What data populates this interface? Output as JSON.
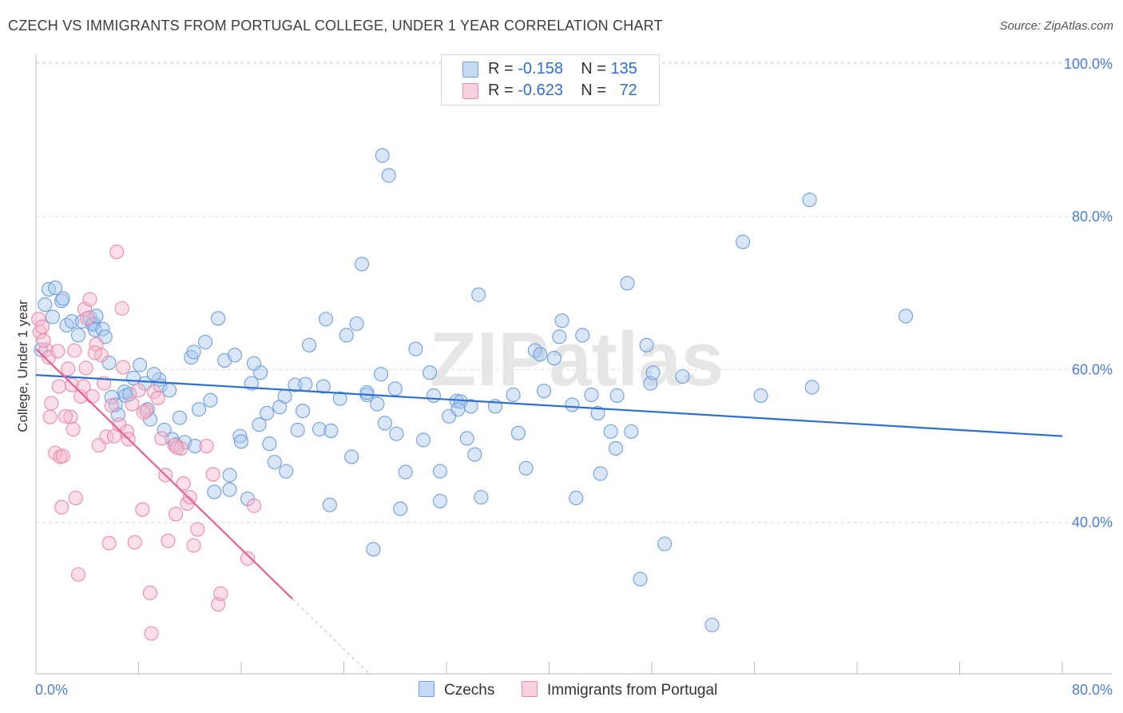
{
  "title": "CZECH VS IMMIGRANTS FROM PORTUGAL COLLEGE, UNDER 1 YEAR CORRELATION CHART",
  "source": "Source: ZipAtlas.com",
  "watermark": "ZIPatlas",
  "legend_top": {
    "rows": [
      {
        "r_label": "R =",
        "r_value": "-0.158",
        "n_label": "N =",
        "n_value": "135",
        "color": "#a9c8f0"
      },
      {
        "r_label": "R =",
        "r_value": "-0.623",
        "n_label": "N =",
        "n_value": "72",
        "color": "#f5b8cb"
      }
    ]
  },
  "legend_bottom": [
    {
      "label": "Czechs",
      "color": "#a9c8f0"
    },
    {
      "label": "Immigrants from Portugal",
      "color": "#f5b8cb"
    }
  ],
  "chart_data": {
    "type": "scatter",
    "title": "CZECH VS IMMIGRANTS FROM PORTUGAL COLLEGE, UNDER 1 YEAR CORRELATION CHART",
    "xlabel": "",
    "ylabel": "College, Under 1 year",
    "xlim": [
      0,
      80
    ],
    "ylim": [
      20,
      104
    ],
    "x_tick_labels": [
      "0.0%",
      "80.0%"
    ],
    "y_ticks": [
      40,
      60,
      80,
      100
    ],
    "y_tick_labels": [
      "40.0%",
      "60.0%",
      "80.0%",
      "100.0%"
    ],
    "grid": true,
    "colors": {
      "czechs_fill": "#a9c8f0",
      "czechs_stroke": "#6f9fe0",
      "czechs_line": "#2e6fd0",
      "portugal_fill": "#f5b8cb",
      "portugal_stroke": "#ec8aa9",
      "portugal_line": "#e8628f",
      "tick_label": "#4a7fd4"
    },
    "series": [
      {
        "name": "Czechs",
        "trend": {
          "x0": 0,
          "y0": 59.3,
          "x1": 80,
          "y1": 51.3
        },
        "points": [
          [
            0.7,
            68.5
          ],
          [
            1.0,
            70.5
          ],
          [
            1.5,
            70.7
          ],
          [
            2.0,
            69.0
          ],
          [
            2.1,
            69.3
          ],
          [
            2.4,
            65.8
          ],
          [
            2.8,
            66.3
          ],
          [
            3.6,
            66.3
          ],
          [
            4.2,
            66.8
          ],
          [
            4.4,
            65.9
          ],
          [
            4.5,
            66.0
          ],
          [
            4.6,
            65.2
          ],
          [
            4.7,
            67.0
          ],
          [
            5.2,
            65.3
          ],
          [
            5.4,
            64.3
          ],
          [
            5.7,
            60.9
          ],
          [
            5.9,
            56.4
          ],
          [
            6.2,
            55.4
          ],
          [
            6.4,
            54.1
          ],
          [
            6.9,
            57.1
          ],
          [
            7.0,
            56.6
          ],
          [
            7.6,
            58.9
          ],
          [
            8.1,
            60.6
          ],
          [
            8.5,
            58.2
          ],
          [
            8.7,
            54.8
          ],
          [
            8.9,
            53.5
          ],
          [
            9.6,
            58.7
          ],
          [
            9.7,
            57.9
          ],
          [
            10.0,
            52.1
          ],
          [
            10.4,
            57.3
          ],
          [
            10.6,
            50.9
          ],
          [
            10.9,
            50.2
          ],
          [
            11.2,
            53.7
          ],
          [
            11.6,
            50.5
          ],
          [
            12.1,
            61.6
          ],
          [
            12.3,
            62.3
          ],
          [
            12.7,
            54.8
          ],
          [
            13.2,
            63.6
          ],
          [
            13.6,
            56.0
          ],
          [
            13.9,
            44.0
          ],
          [
            14.2,
            66.7
          ],
          [
            14.7,
            61.2
          ],
          [
            15.1,
            46.2
          ],
          [
            15.1,
            44.3
          ],
          [
            15.5,
            61.9
          ],
          [
            15.9,
            51.3
          ],
          [
            16.0,
            50.6
          ],
          [
            16.5,
            43.1
          ],
          [
            16.8,
            58.2
          ],
          [
            17.4,
            52.8
          ],
          [
            17.5,
            59.6
          ],
          [
            18.0,
            54.3
          ],
          [
            18.2,
            50.3
          ],
          [
            18.6,
            47.9
          ],
          [
            19.0,
            55.1
          ],
          [
            19.4,
            56.5
          ],
          [
            19.5,
            46.7
          ],
          [
            20.2,
            58.0
          ],
          [
            20.4,
            52.1
          ],
          [
            20.8,
            54.6
          ],
          [
            21.0,
            58.1
          ],
          [
            21.3,
            63.2
          ],
          [
            22.1,
            52.2
          ],
          [
            22.4,
            57.8
          ],
          [
            22.6,
            66.6
          ],
          [
            22.9,
            42.3
          ],
          [
            23.0,
            52.0
          ],
          [
            24.2,
            64.5
          ],
          [
            24.6,
            48.6
          ],
          [
            25.0,
            66.0
          ],
          [
            25.4,
            73.8
          ],
          [
            25.8,
            56.7
          ],
          [
            25.8,
            57.0
          ],
          [
            26.3,
            36.5
          ],
          [
            26.6,
            55.5
          ],
          [
            27.0,
            88.0
          ],
          [
            27.2,
            53.0
          ],
          [
            27.5,
            85.4
          ],
          [
            28.0,
            57.5
          ],
          [
            28.1,
            51.6
          ],
          [
            28.4,
            41.8
          ],
          [
            28.8,
            46.6
          ],
          [
            29.6,
            62.7
          ],
          [
            30.2,
            50.8
          ],
          [
            30.7,
            59.6
          ],
          [
            31.0,
            56.6
          ],
          [
            31.5,
            42.8
          ],
          [
            31.5,
            46.7
          ],
          [
            32.2,
            53.9
          ],
          [
            32.8,
            55.9
          ],
          [
            33.1,
            55.8
          ],
          [
            33.6,
            51.0
          ],
          [
            33.9,
            55.2
          ],
          [
            34.2,
            48.9
          ],
          [
            34.5,
            69.8
          ],
          [
            34.7,
            43.3
          ],
          [
            35.8,
            55.2
          ],
          [
            37.2,
            56.7
          ],
          [
            37.6,
            51.7
          ],
          [
            38.9,
            62.5
          ],
          [
            39.3,
            62.0
          ],
          [
            39.6,
            57.2
          ],
          [
            40.4,
            61.5
          ],
          [
            40.8,
            64.3
          ],
          [
            41.0,
            66.4
          ],
          [
            41.8,
            55.4
          ],
          [
            42.1,
            43.2
          ],
          [
            42.6,
            64.5
          ],
          [
            43.8,
            54.3
          ],
          [
            44.0,
            46.4
          ],
          [
            44.8,
            51.9
          ],
          [
            45.2,
            49.7
          ],
          [
            45.3,
            56.6
          ],
          [
            46.1,
            71.3
          ],
          [
            46.4,
            51.9
          ],
          [
            47.1,
            32.6
          ],
          [
            47.6,
            63.2
          ],
          [
            47.9,
            58.2
          ],
          [
            48.1,
            59.6
          ],
          [
            49.0,
            37.2
          ],
          [
            50.4,
            59.1
          ],
          [
            52.7,
            26.6
          ],
          [
            55.1,
            76.7
          ],
          [
            56.5,
            56.6
          ],
          [
            60.3,
            82.2
          ],
          [
            60.5,
            57.7
          ],
          [
            67.8,
            67.0
          ],
          [
            0.4,
            62.6
          ],
          [
            1.3,
            66.9
          ],
          [
            3.3,
            64.5
          ],
          [
            7.3,
            56.8
          ],
          [
            9.2,
            59.4
          ],
          [
            12.4,
            50.0
          ],
          [
            17.0,
            60.8
          ],
          [
            26.9,
            59.4
          ],
          [
            32.9,
            54.8
          ],
          [
            38.2,
            47.1
          ],
          [
            43.3,
            56.7
          ],
          [
            23.7,
            56.2
          ]
        ]
      },
      {
        "name": "Immigrants from Portugal",
        "trend": {
          "x0": 0,
          "y0": 62.7,
          "x1": 20,
          "y1": 30.0
        },
        "points": [
          [
            0.2,
            66.6
          ],
          [
            0.3,
            64.9
          ],
          [
            0.5,
            65.6
          ],
          [
            0.8,
            62.6
          ],
          [
            1.0,
            61.6
          ],
          [
            1.1,
            53.8
          ],
          [
            1.2,
            55.6
          ],
          [
            1.5,
            49.1
          ],
          [
            1.7,
            62.4
          ],
          [
            1.8,
            57.8
          ],
          [
            1.9,
            48.6
          ],
          [
            2.0,
            42.0
          ],
          [
            2.1,
            48.7
          ],
          [
            2.5,
            60.1
          ],
          [
            2.7,
            53.8
          ],
          [
            2.8,
            58.0
          ],
          [
            2.9,
            52.2
          ],
          [
            3.0,
            62.5
          ],
          [
            3.1,
            43.2
          ],
          [
            3.3,
            33.2
          ],
          [
            3.5,
            56.5
          ],
          [
            3.7,
            57.8
          ],
          [
            3.8,
            67.9
          ],
          [
            3.9,
            60.2
          ],
          [
            4.0,
            66.7
          ],
          [
            4.2,
            69.2
          ],
          [
            4.4,
            56.5
          ],
          [
            4.7,
            63.3
          ],
          [
            4.9,
            50.1
          ],
          [
            5.1,
            61.9
          ],
          [
            5.3,
            58.2
          ],
          [
            5.5,
            51.2
          ],
          [
            5.7,
            37.3
          ],
          [
            5.9,
            55.3
          ],
          [
            6.1,
            51.3
          ],
          [
            6.3,
            75.4
          ],
          [
            6.5,
            52.8
          ],
          [
            6.7,
            68.0
          ],
          [
            6.8,
            60.3
          ],
          [
            7.1,
            51.9
          ],
          [
            7.2,
            50.9
          ],
          [
            7.5,
            55.5
          ],
          [
            7.7,
            37.4
          ],
          [
            8.0,
            57.3
          ],
          [
            8.3,
            41.7
          ],
          [
            8.6,
            54.6
          ],
          [
            8.9,
            30.8
          ],
          [
            9.0,
            25.5
          ],
          [
            9.2,
            57.1
          ],
          [
            9.5,
            56.3
          ],
          [
            9.8,
            51.0
          ],
          [
            10.1,
            46.2
          ],
          [
            10.3,
            37.6
          ],
          [
            10.8,
            50.1
          ],
          [
            10.9,
            41.1
          ],
          [
            11.3,
            49.7
          ],
          [
            11.5,
            45.1
          ],
          [
            11.8,
            42.5
          ],
          [
            12.0,
            43.3
          ],
          [
            12.3,
            37.0
          ],
          [
            12.6,
            39.1
          ],
          [
            13.3,
            50.0
          ],
          [
            13.8,
            46.3
          ],
          [
            14.2,
            29.3
          ],
          [
            14.4,
            30.7
          ],
          [
            16.5,
            35.3
          ],
          [
            17.0,
            42.2
          ],
          [
            0.6,
            63.8
          ],
          [
            2.3,
            53.9
          ],
          [
            4.6,
            62.2
          ],
          [
            8.4,
            54.4
          ],
          [
            11.0,
            49.8
          ]
        ]
      }
    ]
  }
}
